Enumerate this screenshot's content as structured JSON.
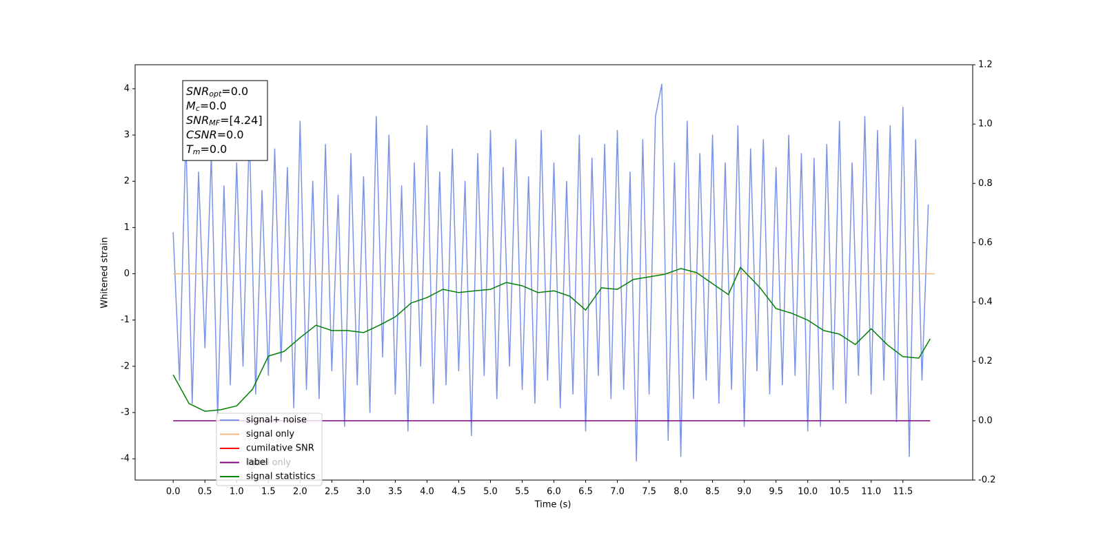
{
  "chart_data": {
    "type": "line",
    "xlabel": "Time (s)",
    "ylabel": "Whitened strain",
    "xlim": [
      -0.6,
      12.6
    ],
    "ylim": [
      -4.46,
      4.52
    ],
    "y2lim": [
      -0.2,
      1.2
    ],
    "xticks": [
      {
        "value": 0,
        "label": "0.0"
      },
      0.5,
      {
        "value": 1,
        "label": "1.0"
      },
      1.5,
      {
        "value": 2,
        "label": "2.0"
      },
      2.5,
      {
        "value": 3,
        "label": "3.0"
      },
      3.5,
      {
        "value": 4,
        "label": "4.0"
      },
      4.5,
      {
        "value": 5,
        "label": "5.0"
      },
      5.5,
      {
        "value": 6,
        "label": "6.0"
      },
      6.5,
      {
        "value": 7,
        "label": "7.0"
      },
      7.5,
      {
        "value": 8,
        "label": "8.0"
      },
      8.5,
      {
        "value": 9,
        "label": "9.0"
      },
      9.5,
      {
        "value": 10,
        "label": "10.0"
      },
      10.5,
      {
        "value": 11,
        "label": "11.0"
      },
      11.5
    ],
    "yticks": [
      -4,
      -3,
      -2,
      -1,
      0,
      1,
      2,
      3,
      4
    ],
    "y2ticks": [
      -0.2,
      {
        "value": 0,
        "label": "0.0"
      },
      0.2,
      0.4,
      0.6,
      0.8,
      {
        "value": 1,
        "label": "1.0"
      },
      1.2
    ],
    "legend_loc": "lower left",
    "legend_ghost": "label only",
    "annotation": [
      {
        "text": "SNR",
        "sub": "opt",
        "value": "=0.0"
      },
      {
        "text": "M",
        "sub": "c",
        "value": "=0.0"
      },
      {
        "text": "SNR",
        "sub": "MF",
        "value": "=[4.24]"
      },
      {
        "text": "CSNR",
        "value": "=0.0"
      },
      {
        "text": "T",
        "sub": "m",
        "value": "=0.0"
      }
    ],
    "series": [
      {
        "name": "signal+ noise",
        "color": "#7a93e8",
        "axis": "y",
        "x": [
          0,
          0.1,
          0.2,
          0.3,
          0.4,
          0.5,
          0.6,
          0.7,
          0.8,
          0.9,
          1,
          1.1,
          1.2,
          1.3,
          1.4,
          1.5,
          1.6,
          1.7,
          1.8,
          1.9,
          2,
          2.1,
          2.2,
          2.3,
          2.4,
          2.5,
          2.6,
          2.7,
          2.8,
          2.9,
          3,
          3.1,
          3.2,
          3.3,
          3.4,
          3.5,
          3.6,
          3.7,
          3.8,
          3.9,
          4,
          4.1,
          4.2,
          4.3,
          4.4,
          4.5,
          4.6,
          4.7,
          4.8,
          4.9,
          5,
          5.1,
          5.2,
          5.3,
          5.4,
          5.5,
          5.6,
          5.7,
          5.8,
          5.9,
          6,
          6.1,
          6.2,
          6.3,
          6.4,
          6.5,
          6.6,
          6.7,
          6.8,
          6.9,
          7,
          7.1,
          7.2,
          7.3,
          7.4,
          7.5,
          7.6,
          7.7,
          7.8,
          7.9,
          8,
          8.1,
          8.2,
          8.3,
          8.4,
          8.5,
          8.6,
          8.7,
          8.8,
          8.9,
          9,
          9.1,
          9.2,
          9.3,
          9.4,
          9.5,
          9.6,
          9.7,
          9.8,
          9.9,
          10,
          10.1,
          10.2,
          10.3,
          10.4,
          10.5,
          10.6,
          10.7,
          10.8,
          10.9,
          11,
          11.1,
          11.2,
          11.3,
          11.4,
          11.5,
          11.6,
          11.7,
          11.8,
          11.9
        ],
        "values": [
          0.9,
          -2.3,
          3.0,
          -2.8,
          2.2,
          -1.6,
          2.6,
          -3.1,
          1.9,
          -2.4,
          2.4,
          -2.0,
          3.1,
          -2.6,
          1.8,
          -2.2,
          2.7,
          -1.9,
          2.3,
          -2.9,
          3.3,
          -2.5,
          2.0,
          -2.7,
          2.8,
          -2.1,
          1.7,
          -3.3,
          2.6,
          -2.4,
          2.1,
          -3.0,
          3.4,
          -1.8,
          3.0,
          -2.6,
          1.9,
          -3.4,
          2.4,
          -2.0,
          3.2,
          -2.8,
          2.2,
          -2.4,
          2.7,
          -2.1,
          2.0,
          -3.5,
          2.6,
          -2.2,
          3.1,
          -2.7,
          2.3,
          -2.0,
          2.9,
          -2.5,
          2.1,
          -2.8,
          3.1,
          -2.3,
          2.4,
          -2.9,
          2.0,
          -2.6,
          3.0,
          -3.4,
          2.5,
          -2.2,
          2.8,
          -2.7,
          3.1,
          -2.5,
          2.2,
          -4.05,
          2.9,
          -2.6,
          3.4,
          4.1,
          -3.6,
          2.4,
          -3.95,
          3.3,
          -2.7,
          2.6,
          -2.3,
          3.0,
          -2.8,
          2.4,
          -2.5,
          3.2,
          -3.3,
          2.7,
          -2.1,
          2.9,
          -2.6,
          2.3,
          -2.4,
          3.0,
          -2.2,
          2.6,
          -3.4,
          2.5,
          -3.3,
          2.8,
          -2.5,
          3.3,
          -2.8,
          2.4,
          -2.2,
          3.4,
          -2.6,
          3.1,
          -2.3,
          3.2,
          -3.2,
          3.6,
          -3.95,
          2.9,
          -2.3,
          1.5
        ]
      },
      {
        "name": "signal only",
        "color": "#f6b97c",
        "axis": "y",
        "x": [
          0,
          12
        ],
        "values": [
          0,
          0
        ]
      },
      {
        "name": "cumilative SNR",
        "color": "#ff0000",
        "axis": "y",
        "x": [],
        "values": []
      },
      {
        "name": "label",
        "color": "#800080",
        "axis": "y2",
        "x": [
          0,
          11.93
        ],
        "values": [
          0,
          0
        ]
      },
      {
        "name": "signal statistics",
        "color": "#008000",
        "axis": "y2",
        "x": [
          0,
          0.25,
          0.5,
          0.75,
          1,
          1.25,
          1.5,
          1.75,
          2,
          2.25,
          2.5,
          2.75,
          3,
          3.25,
          3.5,
          3.75,
          4,
          4.25,
          4.5,
          4.75,
          5,
          5.25,
          5.5,
          5.75,
          6,
          6.25,
          6.5,
          6.75,
          7,
          7.25,
          7.5,
          7.75,
          8,
          8.25,
          8.5,
          8.75,
          8.94,
          9.25,
          9.5,
          9.75,
          10,
          10.25,
          10.5,
          10.75,
          11,
          11.25,
          11.5,
          11.75,
          11.93
        ],
        "values": [
          0.155,
          0.058,
          0.032,
          0.037,
          0.05,
          0.106,
          0.218,
          0.234,
          0.28,
          0.322,
          0.304,
          0.304,
          0.297,
          0.322,
          0.35,
          0.397,
          0.415,
          0.443,
          0.432,
          0.438,
          0.443,
          0.466,
          0.455,
          0.432,
          0.438,
          0.42,
          0.373,
          0.448,
          0.443,
          0.476,
          0.485,
          0.494,
          0.513,
          0.499,
          0.462,
          0.425,
          0.517,
          0.448,
          0.378,
          0.362,
          0.339,
          0.304,
          0.292,
          0.257,
          0.31,
          0.257,
          0.216,
          0.211,
          0.276
        ]
      }
    ]
  }
}
